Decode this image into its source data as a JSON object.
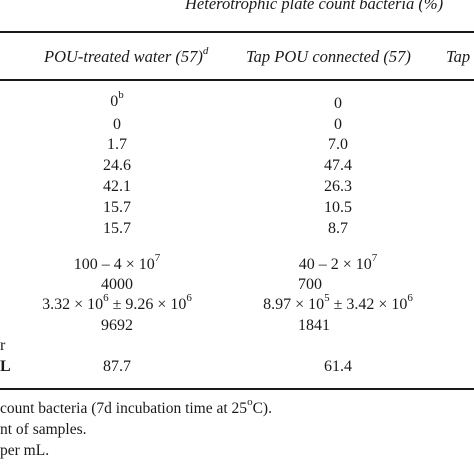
{
  "table": {
    "spanning_header": "Heterotrophic plate count bacteria (%)",
    "columns": [
      {
        "label": "POU-treated water (57)",
        "sup": "d"
      },
      {
        "label": "Tap POU connected (57)",
        "sup": ""
      },
      {
        "label": "Tap",
        "sup": ""
      }
    ],
    "rows": [
      {
        "c1": "0",
        "c1_sup": "b",
        "c2": "0"
      },
      {
        "c1": "0",
        "c1_sup": "",
        "c2": "0"
      },
      {
        "c1": "1.7",
        "c1_sup": "",
        "c2": "7.0"
      },
      {
        "c1": "24.6",
        "c1_sup": "",
        "c2": "47.4"
      },
      {
        "c1": "42.1",
        "c1_sup": "",
        "c2": "26.3"
      },
      {
        "c1": "15.7",
        "c1_sup": "",
        "c2": "10.5"
      },
      {
        "c1": "15.7",
        "c1_sup": "",
        "c2": "8.7"
      }
    ],
    "range": {
      "c1_base": "100 – 4 × 10",
      "c1_exp": "7",
      "c2_base": "40 – 2 × 10",
      "c2_exp": "7"
    },
    "median": {
      "c1": "4000",
      "c2": "700"
    },
    "mean_sd": {
      "c1_a": "3.32 × 10",
      "c1_a_exp": "6",
      "c1_b": " ± 9.26 × 10",
      "c1_b_exp": "6",
      "c2_a": "8.97 × 10",
      "c2_a_exp": "5",
      "c2_b": " ± 3.42 × 10",
      "c2_b_exp": "6"
    },
    "geo_mean": {
      "c1": "9692",
      "c2": "1841"
    },
    "row_label_fragments": {
      "r": "r",
      "L": "L"
    },
    "percent_row": {
      "c1": "87.7",
      "c2": "61.4"
    }
  },
  "footnotes": [
    {
      "text_a": "count bacteria (7d incubation time at 25",
      "sup": "o",
      "text_b": "C)."
    },
    {
      "text_a": "nt of samples.",
      "sup": "",
      "text_b": ""
    },
    {
      "text_a": "per mL.",
      "sup": "",
      "text_b": ""
    }
  ]
}
